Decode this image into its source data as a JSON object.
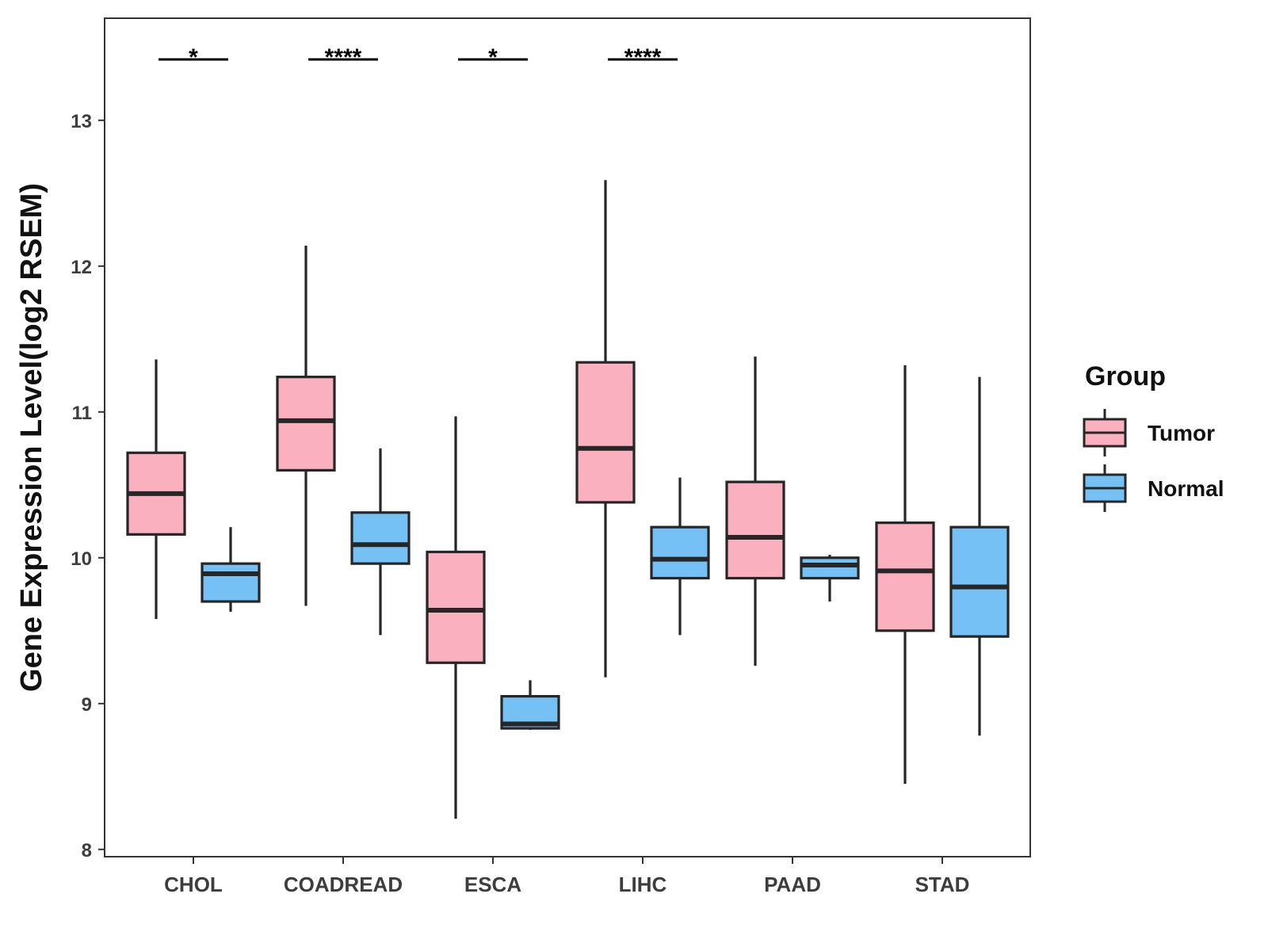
{
  "chart_data": {
    "type": "boxplot",
    "title": "",
    "xlabel": "",
    "ylabel": "Gene Expression Level(log2 RSEM)",
    "ylim": [
      7.95,
      13.7
    ],
    "yticks": [
      8,
      9,
      10,
      11,
      12,
      13
    ],
    "grid": false,
    "categories": [
      "CHOL",
      "COADREAD",
      "ESCA",
      "LIHC",
      "PAAD",
      "STAD"
    ],
    "legend": {
      "title": "Group",
      "position": "right",
      "entries": [
        {
          "name": "Tumor",
          "color": "#fbb0c0"
        },
        {
          "name": "Normal",
          "color": "#75c1f6"
        }
      ]
    },
    "series": [
      {
        "name": "Tumor",
        "color": "#fbb0c0",
        "boxes": [
          {
            "category": "CHOL",
            "min": 9.58,
            "q1": 10.16,
            "median": 10.44,
            "q3": 10.72,
            "max": 11.36
          },
          {
            "category": "COADREAD",
            "min": 9.67,
            "q1": 10.6,
            "median": 10.94,
            "q3": 11.24,
            "max": 12.14
          },
          {
            "category": "ESCA",
            "min": 8.21,
            "q1": 9.28,
            "median": 9.64,
            "q3": 10.04,
            "max": 10.97
          },
          {
            "category": "LIHC",
            "min": 9.18,
            "q1": 10.38,
            "median": 10.75,
            "q3": 11.34,
            "max": 12.59
          },
          {
            "category": "PAAD",
            "min": 9.26,
            "q1": 9.86,
            "median": 10.14,
            "q3": 10.52,
            "max": 11.38
          },
          {
            "category": "STAD",
            "min": 8.45,
            "q1": 9.5,
            "median": 9.91,
            "q3": 10.24,
            "max": 11.32
          }
        ]
      },
      {
        "name": "Normal",
        "color": "#75c1f6",
        "boxes": [
          {
            "category": "CHOL",
            "min": 9.63,
            "q1": 9.7,
            "median": 9.89,
            "q3": 9.96,
            "max": 10.21
          },
          {
            "category": "COADREAD",
            "min": 9.47,
            "q1": 9.96,
            "median": 10.09,
            "q3": 10.31,
            "max": 10.75
          },
          {
            "category": "ESCA",
            "min": 8.82,
            "q1": 8.83,
            "median": 8.86,
            "q3": 9.05,
            "max": 9.16
          },
          {
            "category": "LIHC",
            "min": 9.47,
            "q1": 9.86,
            "median": 9.99,
            "q3": 10.21,
            "max": 10.55
          },
          {
            "category": "PAAD",
            "min": 9.7,
            "q1": 9.86,
            "median": 9.95,
            "q3": 10.0,
            "max": 10.02
          },
          {
            "category": "STAD",
            "min": 8.78,
            "q1": 9.46,
            "median": 9.8,
            "q3": 10.21,
            "max": 11.24
          }
        ]
      }
    ],
    "significance": [
      {
        "category": "CHOL",
        "label": "*"
      },
      {
        "category": "COADREAD",
        "label": "****"
      },
      {
        "category": "ESCA",
        "label": "*"
      },
      {
        "category": "LIHC",
        "label": "****"
      }
    ]
  }
}
